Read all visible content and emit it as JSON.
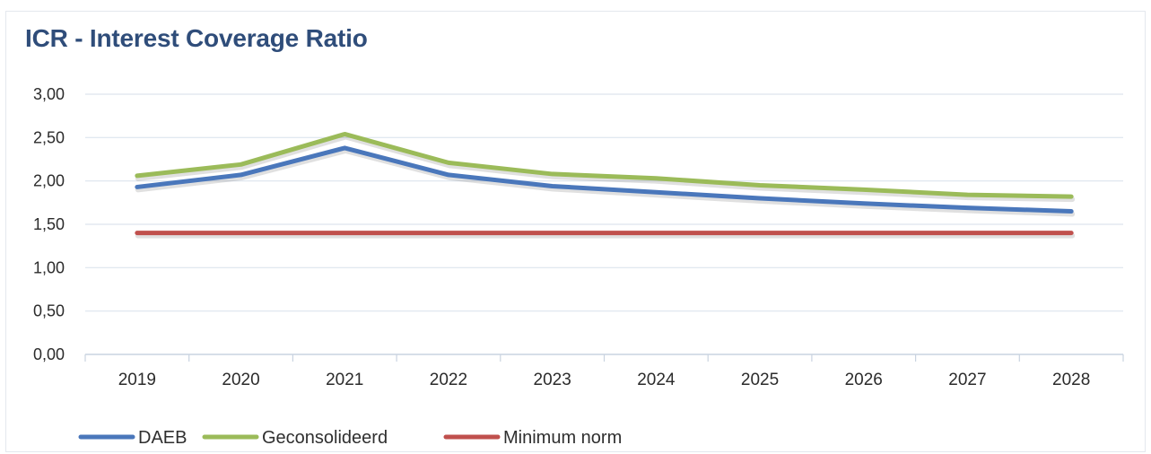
{
  "chart_data": {
    "type": "line",
    "title": "ICR - Interest Coverage Ratio",
    "categories": [
      "2019",
      "2020",
      "2021",
      "2022",
      "2023",
      "2024",
      "2025",
      "2026",
      "2027",
      "2028"
    ],
    "ylim": [
      0,
      3
    ],
    "yticks": [
      0,
      0.5,
      1,
      1.5,
      2,
      2.5,
      3
    ],
    "ytick_labels": [
      "0,00",
      "0,50",
      "1,00",
      "1,50",
      "2,00",
      "2,50",
      "3,00"
    ],
    "grid": true,
    "legend_position": "bottom-left",
    "series": [
      {
        "name": "DAEB",
        "color": "#4a77bb",
        "values": [
          1.93,
          2.07,
          2.38,
          2.07,
          1.94,
          1.87,
          1.8,
          1.74,
          1.69,
          1.65
        ]
      },
      {
        "name": "Geconsolideerd",
        "color": "#9bbb59",
        "values": [
          2.06,
          2.19,
          2.54,
          2.21,
          2.08,
          2.03,
          1.95,
          1.9,
          1.84,
          1.82
        ]
      },
      {
        "name": "Minimum norm",
        "color": "#c0504d",
        "values": [
          1.4,
          1.4,
          1.4,
          1.4,
          1.4,
          1.4,
          1.4,
          1.4,
          1.4,
          1.4
        ]
      }
    ]
  }
}
